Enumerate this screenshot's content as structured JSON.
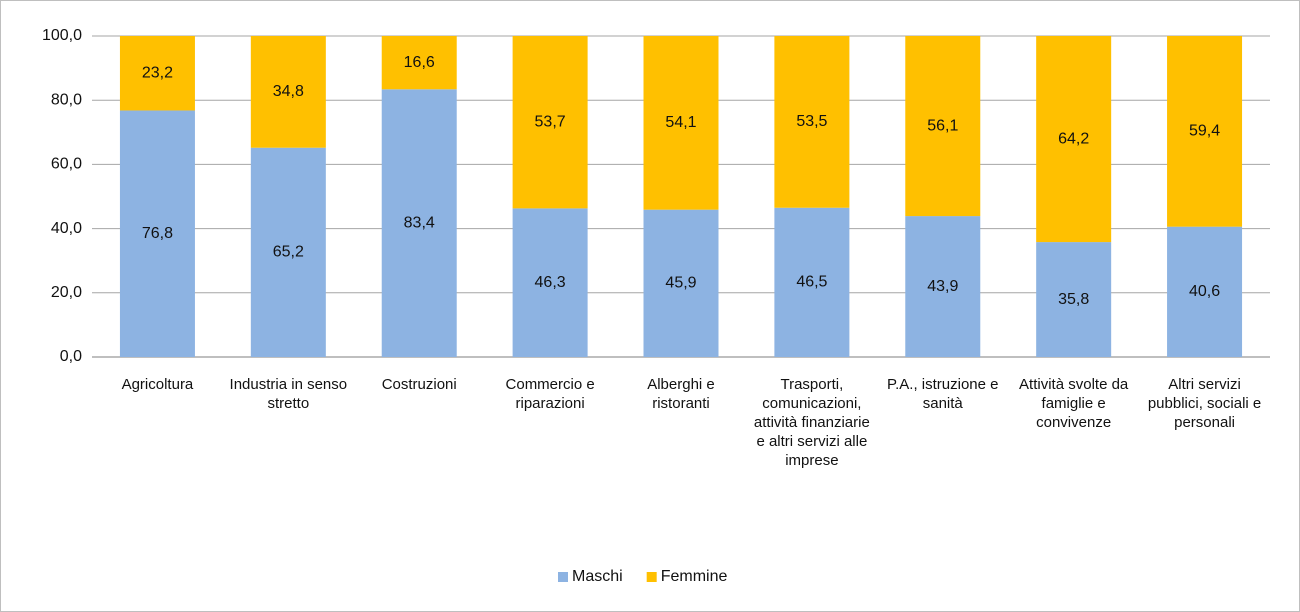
{
  "chart_data": {
    "type": "stacked_bar",
    "categories": [
      "Agricoltura",
      "Industria in senso stretto",
      "Costruzioni",
      "Commercio e riparazioni",
      "Alberghi e ristoranti",
      "Trasporti, comunicazioni, attività finanziarie e altri servizi alle imprese",
      "P.A., istruzione e sanità",
      "Attività svolte da famiglie e convivenze",
      "Altri servizi pubblici, sociali e personali"
    ],
    "series": [
      {
        "name": "Maschi",
        "color": "#8db3e2",
        "values": [
          76.8,
          65.2,
          83.4,
          46.3,
          45.9,
          46.5,
          43.9,
          35.8,
          40.6
        ],
        "value_labels": [
          "76,8",
          "65,2",
          "83,4",
          "46,3",
          "45,9",
          "46,5",
          "43,9",
          "35,8",
          "40,6"
        ]
      },
      {
        "name": "Femmine",
        "color": "#ffc000",
        "values": [
          23.2,
          34.8,
          16.6,
          53.7,
          54.1,
          53.5,
          56.1,
          64.2,
          59.4
        ],
        "value_labels": [
          "23,2",
          "34,8",
          "16,6",
          "53,7",
          "54,1",
          "53,5",
          "56,1",
          "64,2",
          "59,4"
        ]
      }
    ],
    "ylim": [
      0,
      100
    ],
    "yticks": [
      {
        "value": 0,
        "label": "0,0"
      },
      {
        "value": 20,
        "label": "20,0"
      },
      {
        "value": 40,
        "label": "40,0"
      },
      {
        "value": 60,
        "label": "60,0"
      },
      {
        "value": 80,
        "label": "80,0"
      },
      {
        "value": 100,
        "label": "100,0"
      }
    ],
    "grid": true,
    "legend": "bottom"
  }
}
